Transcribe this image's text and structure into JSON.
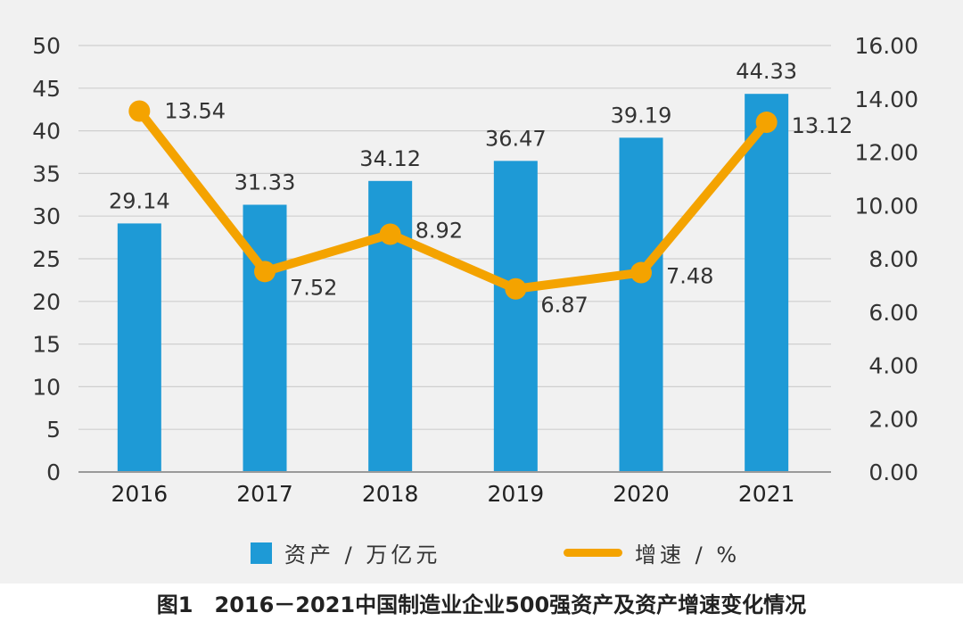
{
  "chart_data": {
    "type": "bar",
    "title": "",
    "categories": [
      "2016",
      "2017",
      "2018",
      "2019",
      "2020",
      "2021"
    ],
    "series": [
      {
        "name": "资产 / 万亿元",
        "type": "bar",
        "axis": "left",
        "color": "#1e9ad6",
        "values": [
          29.14,
          31.33,
          34.12,
          36.47,
          39.19,
          44.33
        ],
        "labels": [
          "29.14",
          "31.33",
          "34.12",
          "36.47",
          "39.19",
          "44.33"
        ]
      },
      {
        "name": "增速 / %",
        "type": "line",
        "axis": "right",
        "color": "#f4a300",
        "values": [
          13.54,
          7.52,
          8.92,
          6.87,
          7.48,
          13.12
        ],
        "labels": [
          "13.54",
          "7.52",
          "8.92",
          "6.87",
          "7.48",
          "13.12"
        ]
      }
    ],
    "y_left": {
      "range": [
        0,
        50
      ],
      "ticks": [
        "0",
        "5",
        "10",
        "15",
        "20",
        "25",
        "30",
        "35",
        "40",
        "45",
        "50"
      ]
    },
    "y_right": {
      "range": [
        0,
        16
      ],
      "ticks": [
        "0.00",
        "2.00",
        "4.00",
        "6.00",
        "8.00",
        "10.00",
        "12.00",
        "14.00",
        "16.00"
      ]
    },
    "grid": true,
    "legend_position": "bottom"
  },
  "caption": "图1　2016－2021中国制造业企业500强资产及资产增速变化情况"
}
